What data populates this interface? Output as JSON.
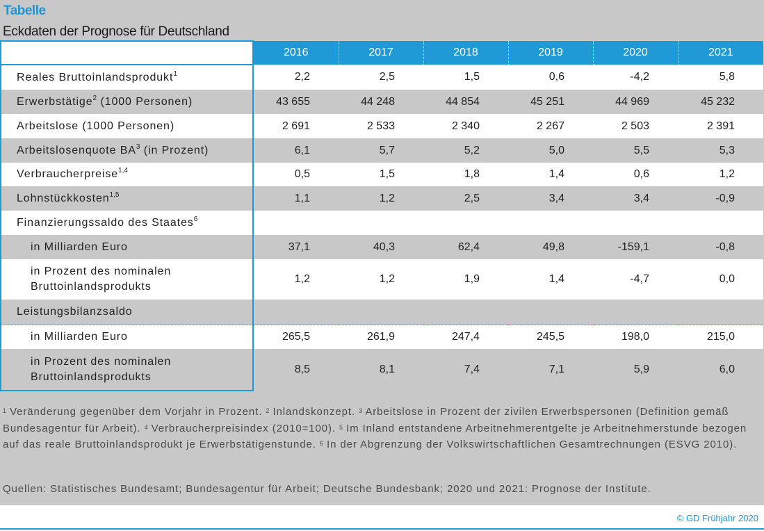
{
  "title": "Tabelle",
  "subtitle": "Eckdaten der Prognose für Deutschland",
  "colors": {
    "accent": "#1f9ad6",
    "panel_gray": "#c8c8c8"
  },
  "years": [
    "2016",
    "2017",
    "2018",
    "2019",
    "2020",
    "2021"
  ],
  "rows": [
    {
      "label": "Reales Bruttoinlandsprodukt",
      "sup": "1",
      "values": [
        "2,2",
        "2,5",
        "1,5",
        "0,6",
        "-4,2",
        "5,8"
      ]
    },
    {
      "label": "Erwerbstätige",
      "sup": "2",
      "label_after": " (1000 Personen)",
      "values": [
        "43 655",
        "44 248",
        "44 854",
        "45 251",
        "44 969",
        "45 232"
      ]
    },
    {
      "label": "Arbeitslose (1000 Personen)",
      "values": [
        "2 691",
        "2 533",
        "2 340",
        "2 267",
        "2 503",
        "2 391"
      ]
    },
    {
      "label": "Arbeitslosenquote BA",
      "sup": "3",
      "label_after": " (in Prozent)",
      "values": [
        "6,1",
        "5,7",
        "5,2",
        "5,0",
        "5,5",
        "5,3"
      ]
    },
    {
      "label": "Verbraucherpreise",
      "sup": "1,4",
      "values": [
        "0,5",
        "1,5",
        "1,8",
        "1,4",
        "0,6",
        "1,2"
      ]
    },
    {
      "label": "Lohnstückkosten",
      "sup": "1,5",
      "values": [
        "1,1",
        "1,2",
        "2,5",
        "3,4",
        "3,4",
        "-0,9"
      ]
    },
    {
      "label": "Finanzierungssaldo des Staates",
      "sup": "6",
      "values": [
        "",
        "",
        "",
        "",
        "",
        ""
      ]
    },
    {
      "label": "in Milliarden Euro",
      "values": [
        "37,1",
        "40,3",
        "62,4",
        "49,8",
        "-159,1",
        "-0,8"
      ]
    },
    {
      "label": "in Prozent des nominalen",
      "label_line2": "Bruttoinlandsprodukts",
      "values": [
        "1,2",
        "1,2",
        "1,9",
        "1,4",
        "-4,7",
        "0,0"
      ]
    },
    {
      "label": "Leistungsbilanzsaldo",
      "values": [
        "",
        "",
        "",
        "",
        "",
        ""
      ]
    },
    {
      "label": "in Milliarden Euro",
      "values": [
        "265,5",
        "261,9",
        "247,4",
        "245,5",
        "198,0",
        "215,0"
      ]
    },
    {
      "label": "in Prozent des nominalen",
      "label_line2": "Bruttoinlandsprodukts",
      "values": [
        "8,5",
        "8,1",
        "7,4",
        "7,1",
        "5,9",
        "6,0"
      ]
    }
  ],
  "footnotes": [
    {
      "sup": "1",
      "text": " Veränderung gegenüber dem Vorjahr in Prozent. "
    },
    {
      "sup": "2",
      "text": " Inlandskonzept. "
    },
    {
      "sup": "3",
      "text": " Arbeitslose in Prozent der zivilen Erwerbspersonen (Definition gemäß Bundesagentur für Arbeit). "
    },
    {
      "sup": "4",
      "text": " Verbraucherpreisindex (2010=100). "
    },
    {
      "sup": "5",
      "text": " Im Inland entstandene Arbeitnehmerentgelte je Arbeitnehmerstunde bezogen auf das reale Bruttoinlandsprodukt je Erwerbstätigenstunde. "
    },
    {
      "sup": "6",
      "text": " In der Abgrenzung der Volkswirtschaftlichen Gesamtrechnungen (ESVG 2010)."
    }
  ],
  "sources": "Quellen: Statistisches Bundesamt; Bundesagentur für Arbeit; Deutsche Bundesbank; 2020 und 2021: Prognose der Institute.",
  "copyright": "© GD Frühjahr 2020"
}
